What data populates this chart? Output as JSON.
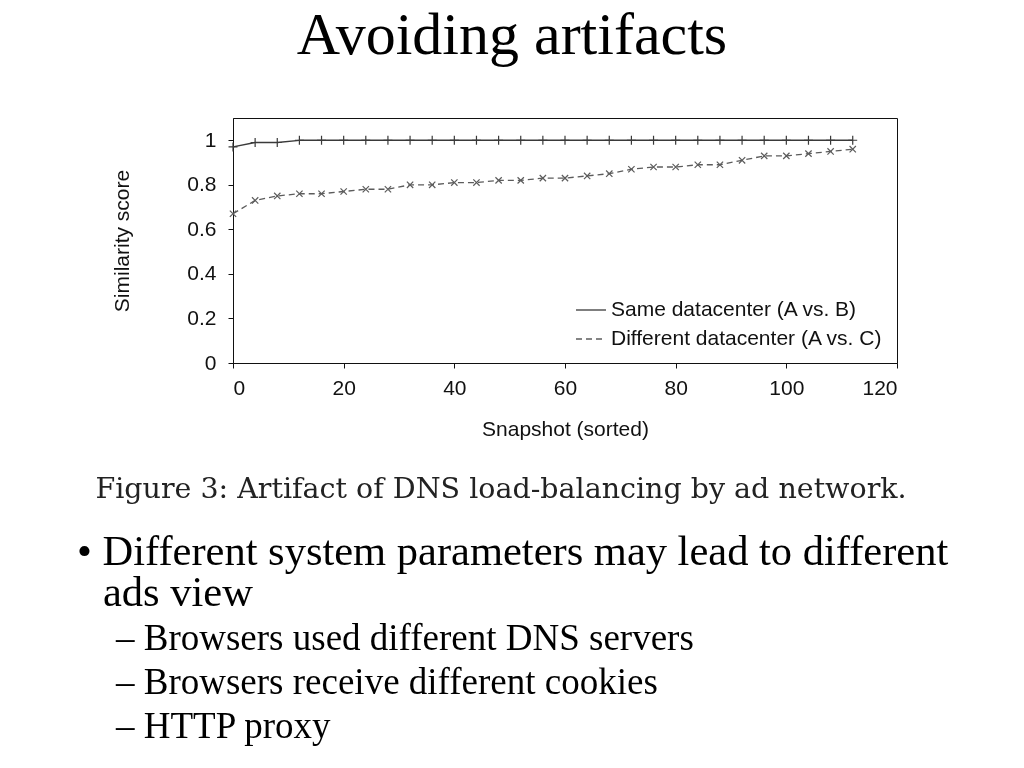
{
  "chart_data": {
    "type": "line",
    "title": "Avoiding artifacts",
    "xlabel": "Snapshot (sorted)",
    "ylabel": "Similarity score",
    "x": [
      0,
      4,
      8,
      12,
      16,
      20,
      24,
      28,
      32,
      36,
      40,
      44,
      48,
      52,
      56,
      60,
      64,
      68,
      72,
      76,
      80,
      84,
      88,
      92,
      96,
      100,
      104,
      108,
      112
    ],
    "series": [
      {
        "name": "Same datacenter (A vs. B)",
        "color": "#3a3a3a",
        "marker": "cross",
        "line_style": "solid",
        "values": [
          0.97,
          0.99,
          0.99,
          1,
          1,
          1,
          1,
          1,
          1,
          1,
          1,
          1,
          1,
          1,
          1,
          1,
          1,
          1,
          1,
          1,
          1,
          1,
          1,
          1,
          1,
          1,
          1,
          1,
          1
        ]
      },
      {
        "name": "Different datacenter (A vs. C)",
        "color": "#5c5c5c",
        "marker": "cross",
        "line_style": "dashed",
        "values": [
          0.67,
          0.73,
          0.75,
          0.76,
          0.76,
          0.77,
          0.78,
          0.78,
          0.8,
          0.8,
          0.81,
          0.81,
          0.82,
          0.82,
          0.83,
          0.83,
          0.84,
          0.85,
          0.87,
          0.88,
          0.88,
          0.89,
          0.89,
          0.91,
          0.93,
          0.93,
          0.94,
          0.95,
          0.96
        ]
      }
    ],
    "xlim": [
      0,
      120
    ],
    "xticks": [
      0,
      20,
      40,
      60,
      80,
      100,
      120
    ],
    "ylim": [
      0,
      1.1
    ],
    "yticks": [
      0,
      0.2,
      0.4,
      0.6,
      0.8,
      1
    ],
    "grid": false,
    "legend": "bottom right",
    "annotations": [
      "Figure 3: Artifact of DNS load-balancing by ad network.",
      "• Different system parameters may lead to different ads view",
      "– Browsers used different DNS servers",
      "– Browsers receive different cookies",
      "– HTTP proxy"
    ]
  }
}
